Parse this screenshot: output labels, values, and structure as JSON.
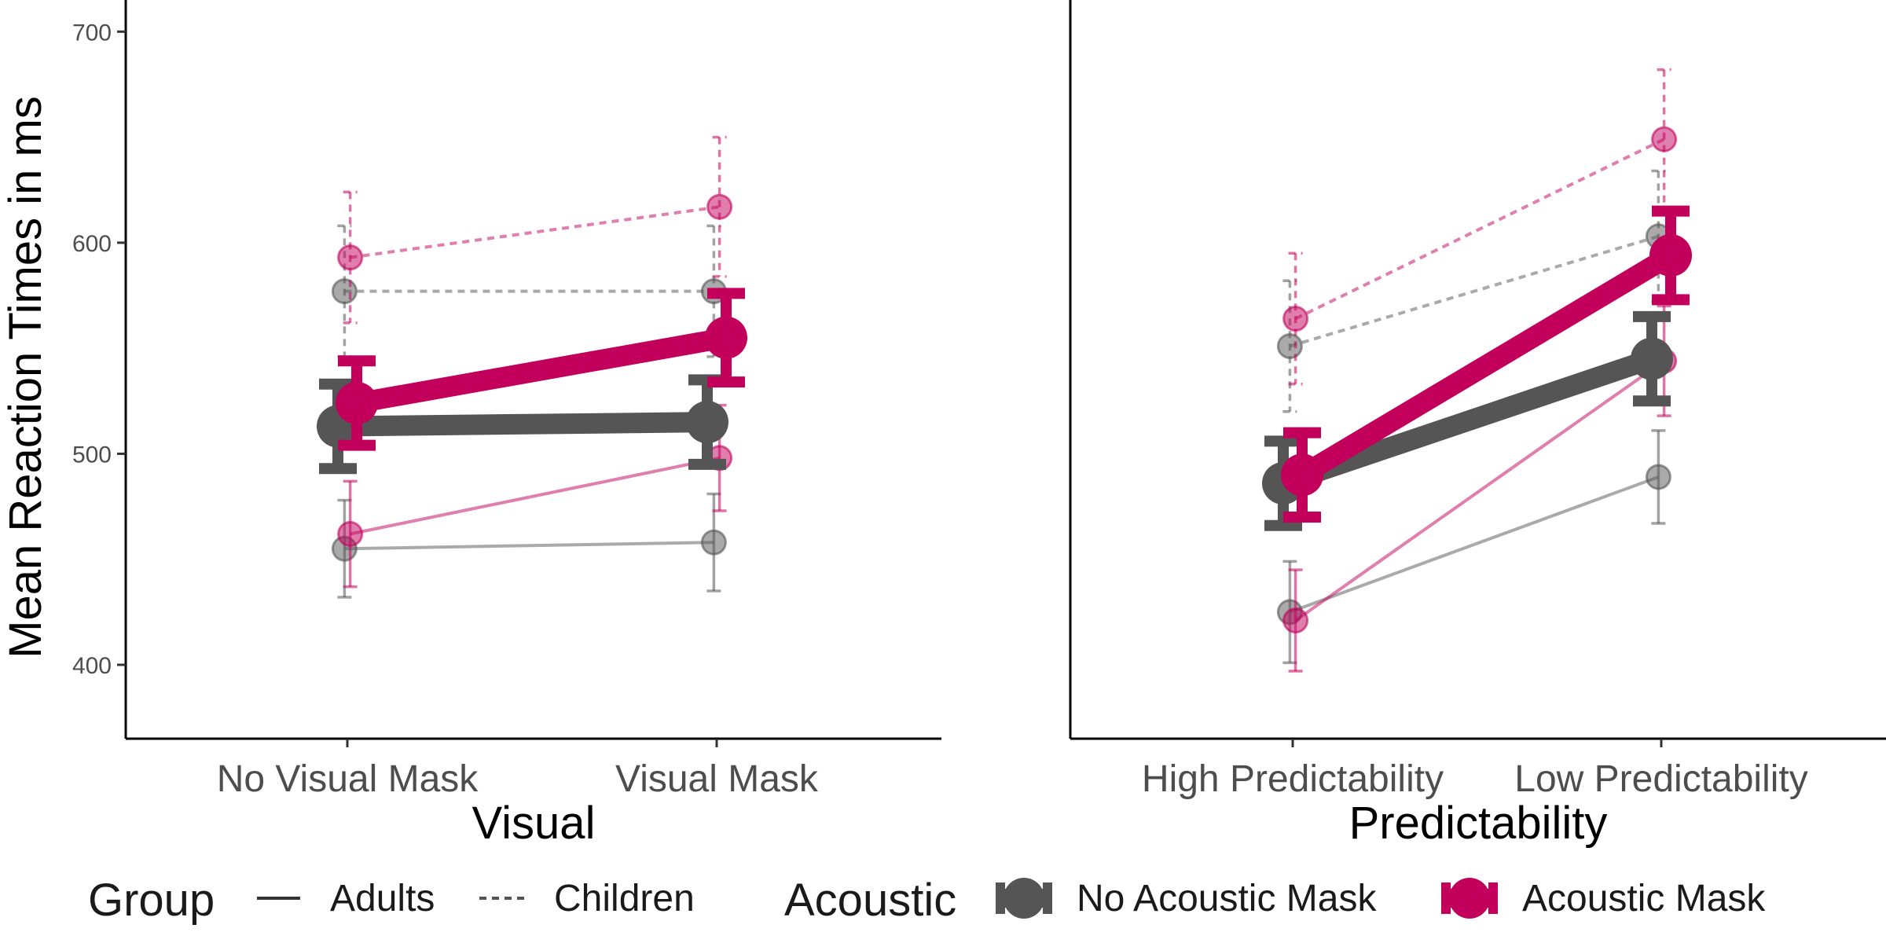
{
  "chart_data": {
    "type": "line",
    "ylabel": "Mean Reaction Times in ms",
    "ylim": [
      365,
      715
    ],
    "yticks": [
      400,
      500,
      600,
      700
    ],
    "colors": {
      "no_acoustic_mask": "#555555",
      "acoustic_mask": "#c2005c"
    },
    "legend": {
      "position": "bottom",
      "group_title": "Group",
      "group_items": [
        "Adults",
        "Children"
      ],
      "acoustic_title": "Acoustic",
      "acoustic_items": [
        "No Acoustic Mask",
        "Acoustic Mask"
      ]
    },
    "panels": [
      {
        "xlabel": "Visual",
        "categories": [
          "No Visual Mask",
          "Visual Mask"
        ],
        "summary": [
          {
            "acoustic": "No Acoustic Mask",
            "values": [
              513,
              515
            ],
            "errors": [
              20,
              20
            ]
          },
          {
            "acoustic": "Acoustic Mask",
            "values": [
              524,
              555
            ],
            "errors": [
              20,
              21
            ]
          }
        ],
        "series": [
          {
            "group": "Adults",
            "acoustic": "No Acoustic Mask",
            "values": [
              455,
              458
            ],
            "errors": [
              23,
              23
            ]
          },
          {
            "group": "Adults",
            "acoustic": "Acoustic Mask",
            "values": [
              462,
              498
            ],
            "errors": [
              25,
              25
            ]
          },
          {
            "group": "Children",
            "acoustic": "No Acoustic Mask",
            "values": [
              577,
              577
            ],
            "errors": [
              31,
              31
            ]
          },
          {
            "group": "Children",
            "acoustic": "Acoustic Mask",
            "values": [
              593,
              617
            ],
            "errors": [
              31,
              33
            ]
          }
        ]
      },
      {
        "xlabel": "Predictability",
        "categories": [
          "High Predictability",
          "Low Predictability"
        ],
        "summary": [
          {
            "acoustic": "No Acoustic Mask",
            "values": [
              486,
              545
            ],
            "errors": [
              20,
              20
            ]
          },
          {
            "acoustic": "Acoustic Mask",
            "values": [
              490,
              594
            ],
            "errors": [
              20,
              21
            ]
          }
        ],
        "series": [
          {
            "group": "Adults",
            "acoustic": "No Acoustic Mask",
            "values": [
              425,
              489
            ],
            "errors": [
              24,
              22
            ]
          },
          {
            "group": "Adults",
            "acoustic": "Acoustic Mask",
            "values": [
              421,
              544
            ],
            "errors": [
              24,
              26
            ]
          },
          {
            "group": "Children",
            "acoustic": "No Acoustic Mask",
            "values": [
              551,
              603
            ],
            "errors": [
              31,
              31
            ]
          },
          {
            "group": "Children",
            "acoustic": "Acoustic Mask",
            "values": [
              564,
              649
            ],
            "errors": [
              31,
              33
            ]
          }
        ]
      }
    ]
  }
}
